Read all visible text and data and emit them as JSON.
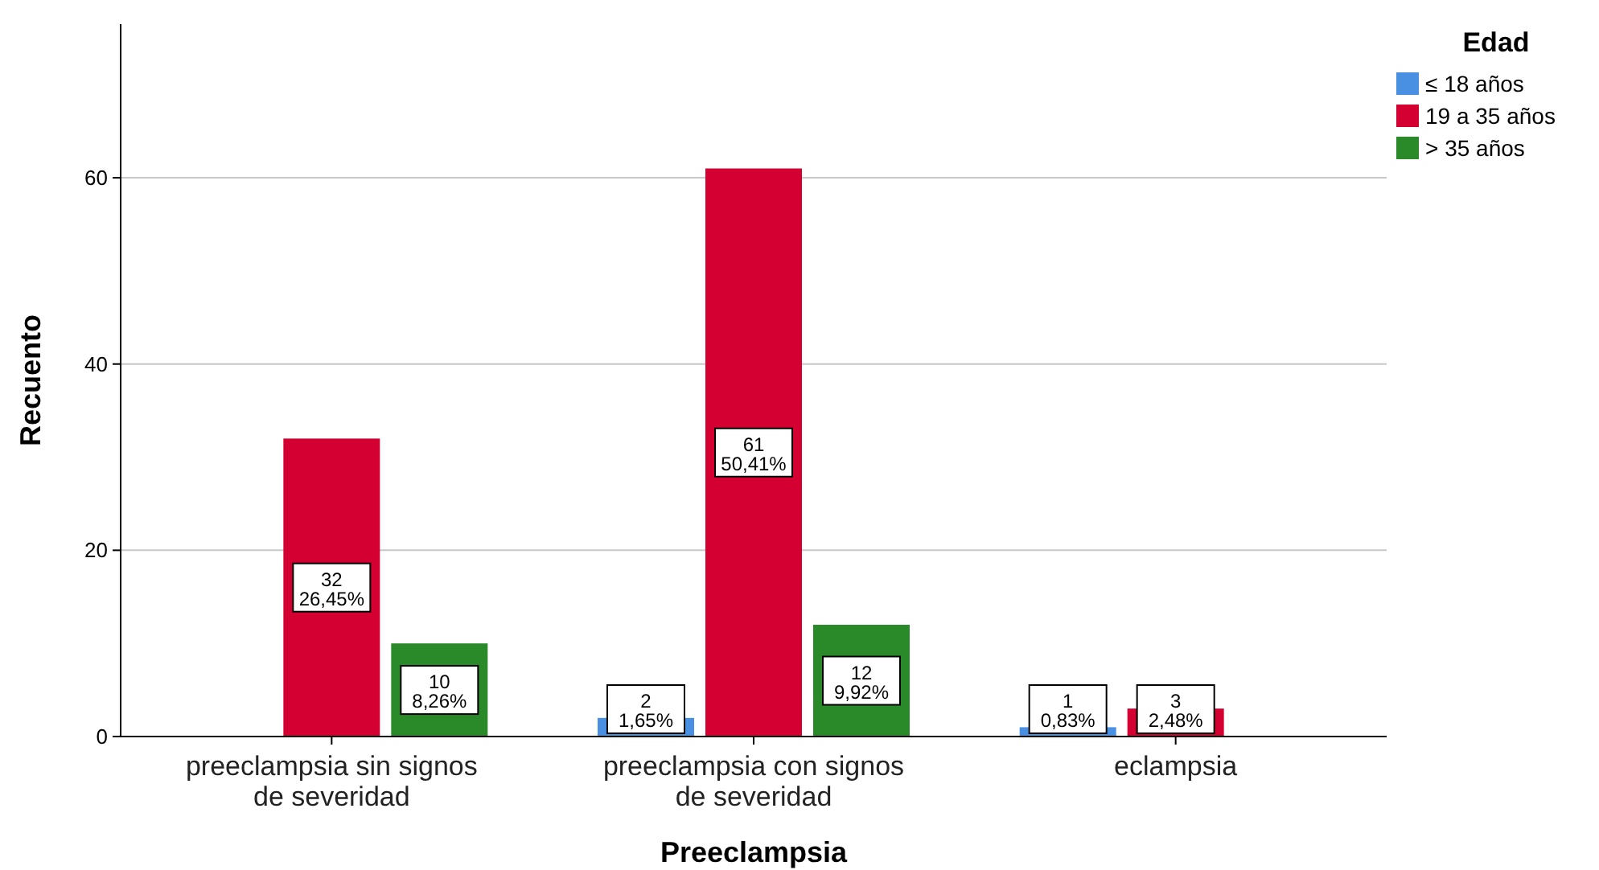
{
  "chart_data": {
    "type": "bar",
    "xlabel": "Preeclampsia",
    "ylabel": "Recuento",
    "legend_title": "Edad",
    "legend": "top right",
    "grid": "y",
    "categories": [
      "preeclampsia sin signos de severidad",
      "preeclampsia con signos de severidad",
      "eclampsia"
    ],
    "ylim": [
      0,
      76.5
    ],
    "yticks": [
      0,
      20,
      40,
      60
    ],
    "series": [
      {
        "name": "≤ 18 años",
        "color": "#4a90e2",
        "values": [
          null,
          2,
          1
        ],
        "value_labels": [
          null,
          "2\n1,65%",
          "1\n0,83%"
        ]
      },
      {
        "name": "19 a 35 años",
        "color": "#d50032",
        "values": [
          32,
          61,
          3
        ],
        "value_labels": [
          "32\n26,45%",
          "61\n50,41%",
          "3\n2,48%"
        ]
      },
      {
        "name": "> 35 años",
        "color": "#2a8a2a",
        "values": [
          10,
          12,
          null
        ],
        "value_labels": [
          "10\n8,26%",
          "12\n9,92%",
          null
        ]
      }
    ]
  }
}
